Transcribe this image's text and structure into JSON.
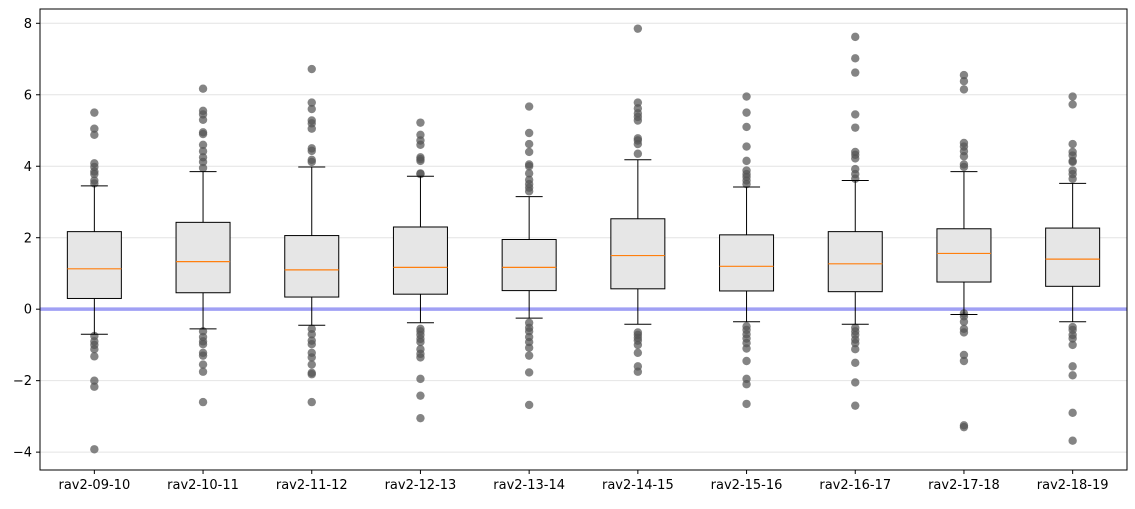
{
  "chart_data": {
    "type": "box",
    "title": "",
    "xlabel": "",
    "ylabel": "",
    "ylim": [
      -4.5,
      8.4
    ],
    "yticks": [
      -4,
      -2,
      0,
      2,
      4,
      6,
      8
    ],
    "ytick_labels": [
      "−4",
      "−2",
      "0",
      "2",
      "4",
      "6",
      "8"
    ],
    "grid": "horizontal",
    "reference_line": {
      "y": 0,
      "color": "#a0a0f4"
    },
    "colors": {
      "box_fill": "#e6e6e6",
      "median": "#ff7f0e",
      "outlier": "#555555"
    },
    "categories": [
      "rav2-09-10",
      "rav2-10-11",
      "rav2-11-12",
      "rav2-12-13",
      "rav2-13-14",
      "rav2-14-15",
      "rav2-15-16",
      "rav2-16-17",
      "rav2-17-18",
      "rav2-18-19"
    ],
    "boxes": [
      {
        "label": "rav2-09-10",
        "whislo": -0.7,
        "q1": 0.3,
        "med": 1.13,
        "q3": 2.17,
        "whishi": 3.45,
        "fliers": [
          5.5,
          5.05,
          4.88,
          4.08,
          3.98,
          3.85,
          3.78,
          3.6,
          3.52,
          -0.75,
          -0.9,
          -1.0,
          -1.12,
          -1.32,
          -2.0,
          -2.17,
          -3.92
        ]
      },
      {
        "label": "rav2-10-11",
        "whislo": -0.55,
        "q1": 0.46,
        "med": 1.33,
        "q3": 2.43,
        "whishi": 3.85,
        "fliers": [
          6.17,
          5.55,
          5.45,
          5.3,
          4.95,
          4.9,
          4.6,
          4.42,
          4.25,
          4.12,
          3.95,
          -0.62,
          -0.78,
          -0.9,
          -0.98,
          -1.22,
          -1.3,
          -1.55,
          -1.75,
          -2.6
        ]
      },
      {
        "label": "rav2-11-12",
        "whislo": -0.45,
        "q1": 0.34,
        "med": 1.1,
        "q3": 2.06,
        "whishi": 3.98,
        "fliers": [
          6.72,
          5.78,
          5.6,
          5.28,
          5.2,
          5.05,
          4.5,
          4.43,
          4.18,
          4.12,
          -0.55,
          -0.7,
          -0.88,
          -0.98,
          -1.22,
          -1.35,
          -1.55,
          -1.78,
          -1.82,
          -2.6
        ]
      },
      {
        "label": "rav2-12-13",
        "whislo": -0.38,
        "q1": 0.42,
        "med": 1.17,
        "q3": 2.3,
        "whishi": 3.72,
        "fliers": [
          5.22,
          4.88,
          4.72,
          4.6,
          4.25,
          4.2,
          4.15,
          3.8,
          3.78,
          -0.55,
          -0.62,
          -0.72,
          -0.83,
          -0.92,
          -1.12,
          -1.25,
          -1.35,
          -1.95,
          -2.42,
          -3.05
        ]
      },
      {
        "label": "rav2-13-14",
        "whislo": -0.25,
        "q1": 0.52,
        "med": 1.17,
        "q3": 1.95,
        "whishi": 3.15,
        "fliers": [
          5.67,
          4.93,
          4.62,
          4.4,
          4.05,
          4.0,
          3.8,
          3.62,
          3.5,
          3.4,
          3.3,
          -0.38,
          -0.52,
          -0.62,
          -0.78,
          -0.92,
          -1.08,
          -1.3,
          -1.77,
          -2.68
        ]
      },
      {
        "label": "rav2-14-15",
        "whislo": -0.42,
        "q1": 0.57,
        "med": 1.5,
        "q3": 2.53,
        "whishi": 4.18,
        "fliers": [
          7.85,
          5.78,
          5.62,
          5.48,
          5.38,
          5.28,
          4.78,
          4.72,
          4.62,
          4.35,
          -0.65,
          -0.72,
          -0.8,
          -0.88,
          -1.0,
          -1.22,
          -1.6,
          -1.75
        ]
      },
      {
        "label": "rav2-15-16",
        "whislo": -0.35,
        "q1": 0.51,
        "med": 1.2,
        "q3": 2.08,
        "whishi": 3.42,
        "fliers": [
          5.95,
          5.5,
          5.1,
          4.55,
          4.15,
          3.88,
          3.78,
          3.7,
          3.6,
          3.5,
          -0.48,
          -0.58,
          -0.7,
          -0.82,
          -0.95,
          -1.1,
          -1.45,
          -1.95,
          -2.1,
          -2.65
        ]
      },
      {
        "label": "rav2-16-17",
        "whislo": -0.42,
        "q1": 0.49,
        "med": 1.27,
        "q3": 2.17,
        "whishi": 3.6,
        "fliers": [
          7.62,
          7.02,
          6.62,
          5.45,
          5.08,
          4.4,
          4.32,
          4.22,
          3.92,
          3.78,
          3.65,
          -0.52,
          -0.62,
          -0.72,
          -0.85,
          -0.95,
          -1.12,
          -1.5,
          -2.05,
          -2.7
        ]
      },
      {
        "label": "rav2-17-18",
        "whislo": -0.15,
        "q1": 0.76,
        "med": 1.56,
        "q3": 2.25,
        "whishi": 3.85,
        "fliers": [
          6.55,
          6.38,
          6.15,
          4.65,
          4.55,
          4.42,
          4.28,
          4.05,
          3.98,
          -0.12,
          -0.2,
          -0.35,
          -0.55,
          -0.65,
          -1.28,
          -1.45,
          -3.25,
          -3.3
        ]
      },
      {
        "label": "rav2-18-19",
        "whislo": -0.35,
        "q1": 0.64,
        "med": 1.4,
        "q3": 2.27,
        "whishi": 3.52,
        "fliers": [
          5.95,
          5.73,
          4.62,
          4.4,
          4.3,
          4.15,
          4.12,
          3.88,
          3.78,
          3.65,
          -0.5,
          -0.58,
          -0.72,
          -0.82,
          -1.0,
          -1.6,
          -1.85,
          -2.9,
          -3.68
        ]
      }
    ]
  }
}
